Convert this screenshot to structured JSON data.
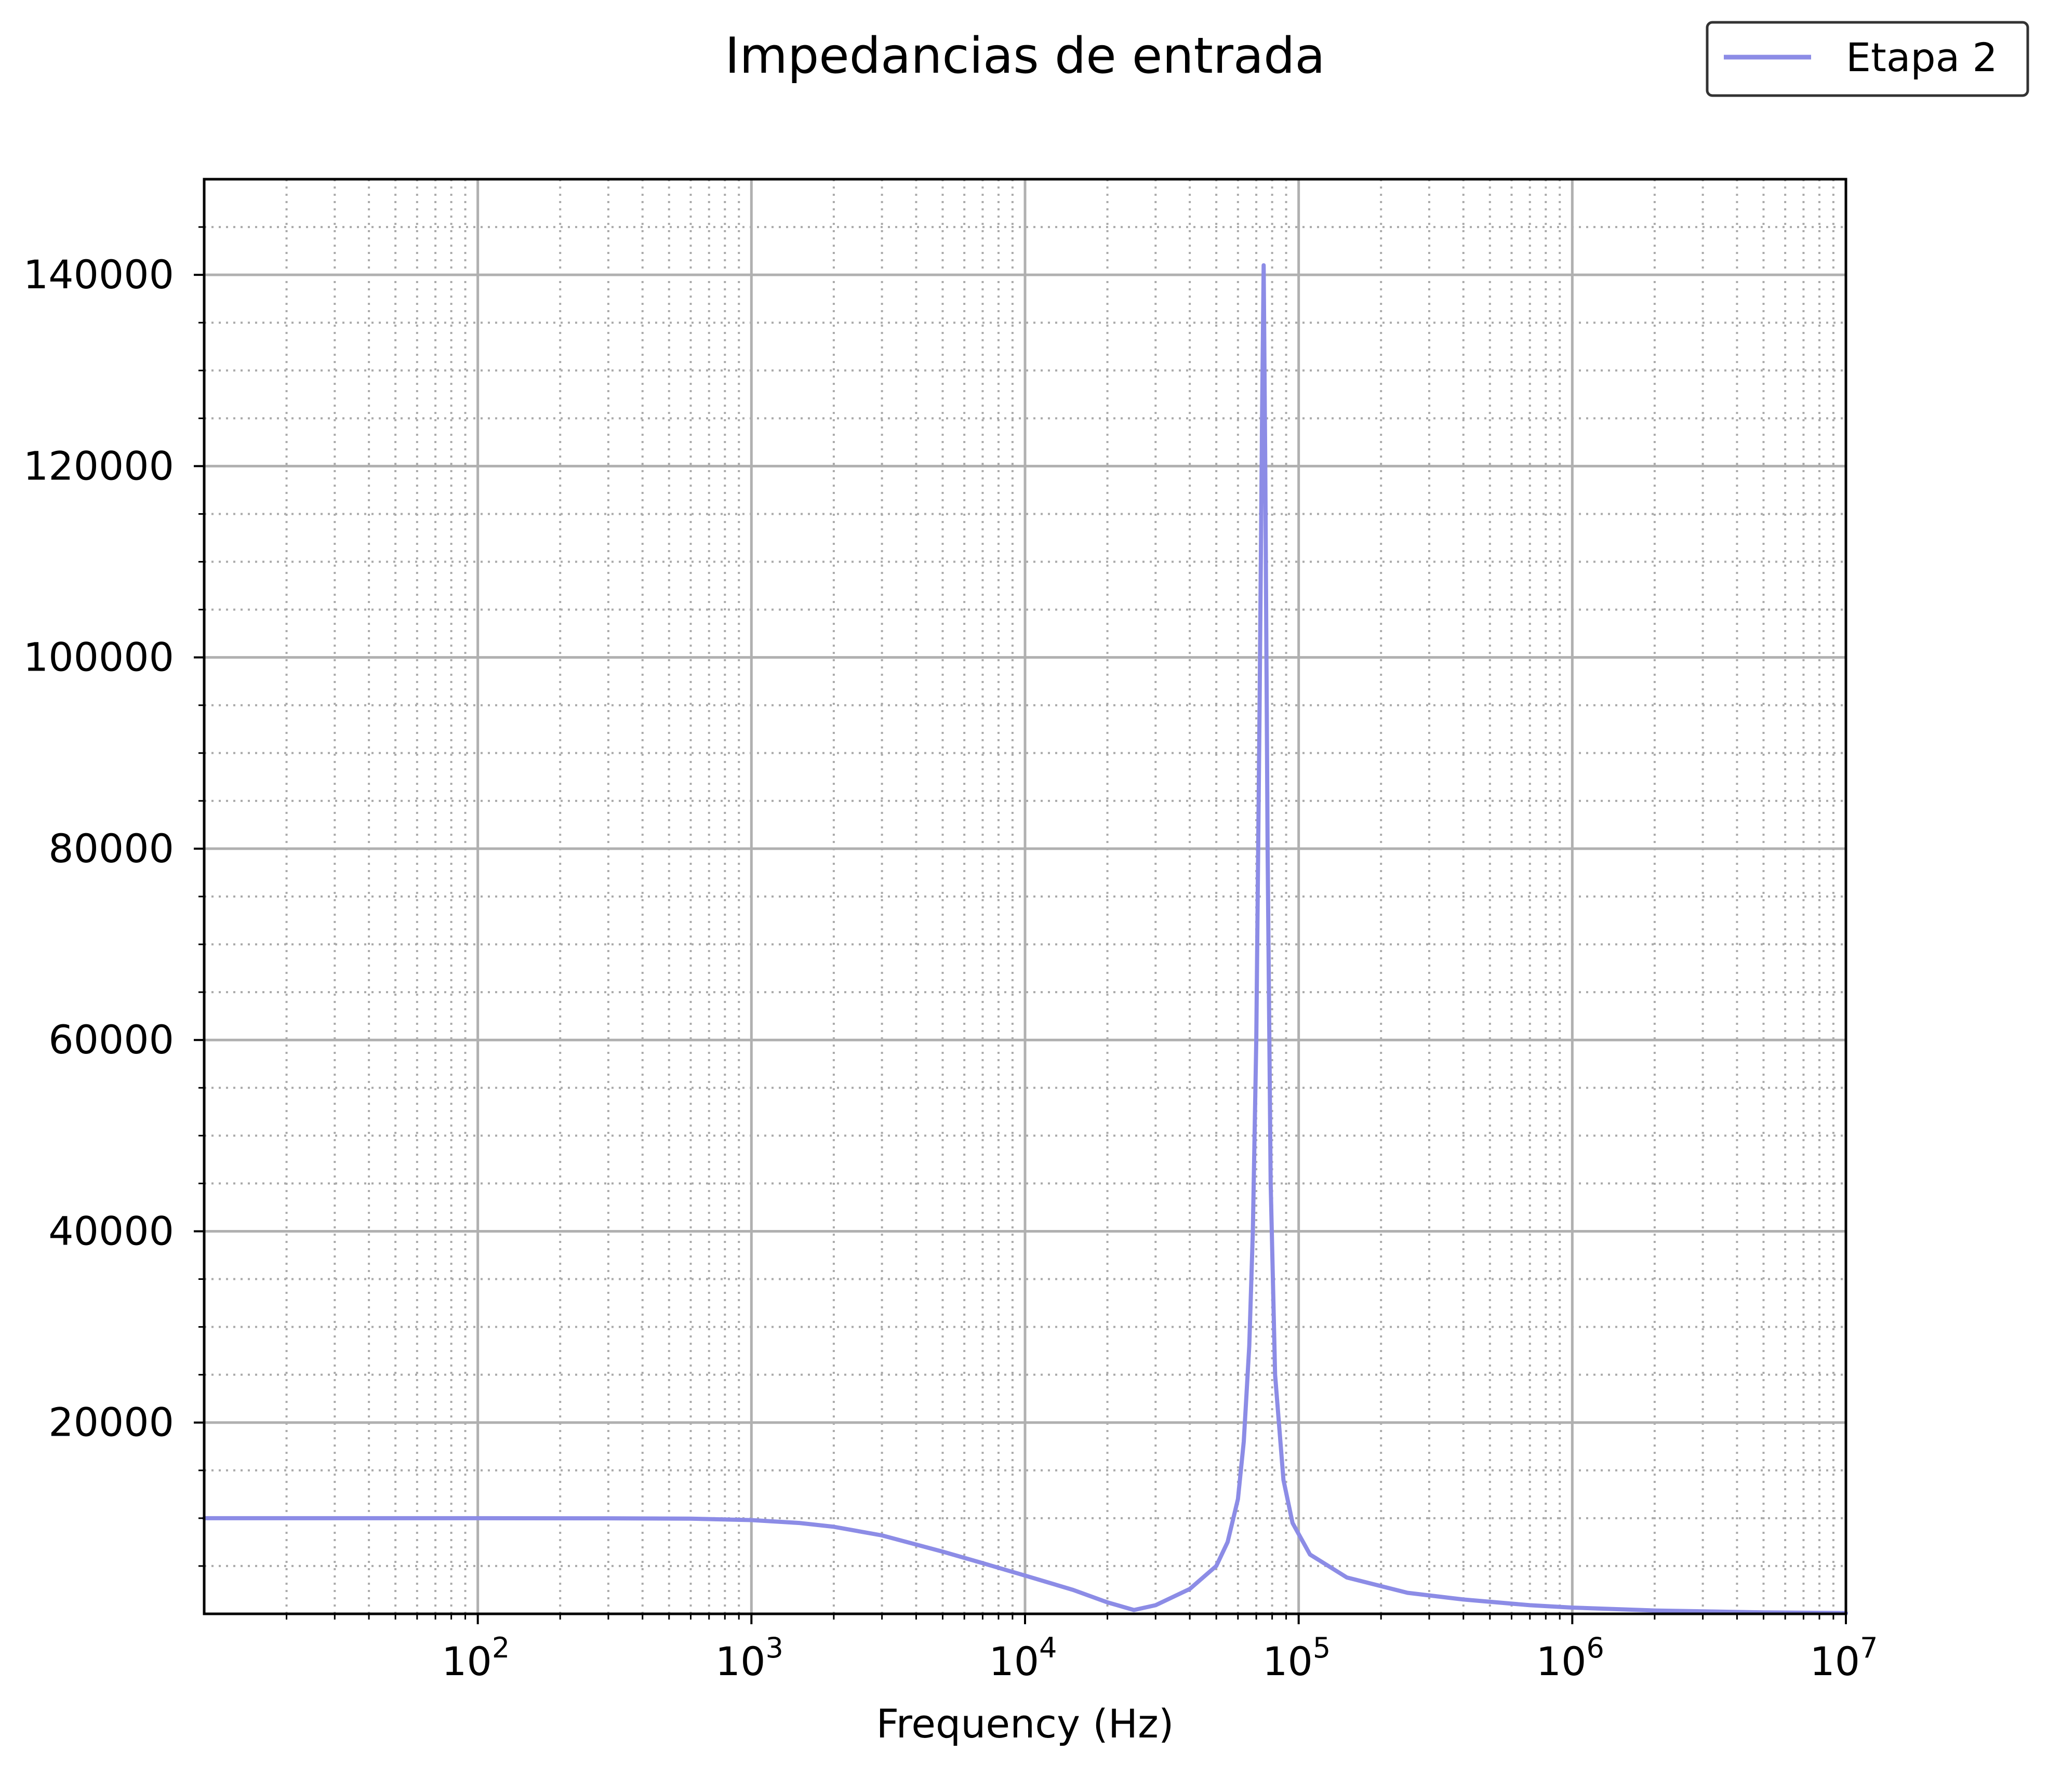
{
  "chart_data": {
    "type": "line",
    "title": "Impedancias de entrada",
    "xlabel": "Frequency (Hz)",
    "ylabel": "",
    "xscale": "log",
    "xlim": [
      10,
      10000000
    ],
    "ylim": [
      0,
      150000
    ],
    "grid": true,
    "legend_position": "top-right",
    "x_ticks": [
      {
        "base": "10",
        "exp": "2"
      },
      {
        "base": "10",
        "exp": "3"
      },
      {
        "base": "10",
        "exp": "4"
      },
      {
        "base": "10",
        "exp": "5"
      },
      {
        "base": "10",
        "exp": "6"
      },
      {
        "base": "10",
        "exp": "7"
      }
    ],
    "y_ticks": [
      "20000",
      "40000",
      "60000",
      "80000",
      "100000",
      "120000",
      "140000"
    ],
    "series": [
      {
        "name": "Etapa 2",
        "color": "#8c8ce6",
        "points": [
          [
            10,
            10000
          ],
          [
            100,
            10000
          ],
          [
            300,
            9990
          ],
          [
            600,
            9950
          ],
          [
            1000,
            9800
          ],
          [
            1500,
            9500
          ],
          [
            2000,
            9100
          ],
          [
            3000,
            8200
          ],
          [
            5000,
            6500
          ],
          [
            7000,
            5300
          ],
          [
            10000,
            4000
          ],
          [
            15000,
            2500
          ],
          [
            20000,
            1200
          ],
          [
            25000,
            400
          ],
          [
            30000,
            900
          ],
          [
            40000,
            2600
          ],
          [
            50000,
            5000
          ],
          [
            55000,
            7500
          ],
          [
            60000,
            12000
          ],
          [
            63000,
            18000
          ],
          [
            66000,
            28000
          ],
          [
            68000,
            40000
          ],
          [
            70000,
            60000
          ],
          [
            72000,
            95000
          ],
          [
            73500,
            125000
          ],
          [
            74500,
            141000
          ],
          [
            75500,
            120000
          ],
          [
            77000,
            80000
          ],
          [
            79000,
            45000
          ],
          [
            82000,
            25000
          ],
          [
            88000,
            14000
          ],
          [
            95000,
            9500
          ],
          [
            110000,
            6200
          ],
          [
            150000,
            3800
          ],
          [
            250000,
            2200
          ],
          [
            400000,
            1500
          ],
          [
            700000,
            900
          ],
          [
            1000000,
            650
          ],
          [
            2000000,
            350
          ],
          [
            5000000,
            150
          ],
          [
            10000000,
            80
          ]
        ]
      }
    ]
  }
}
